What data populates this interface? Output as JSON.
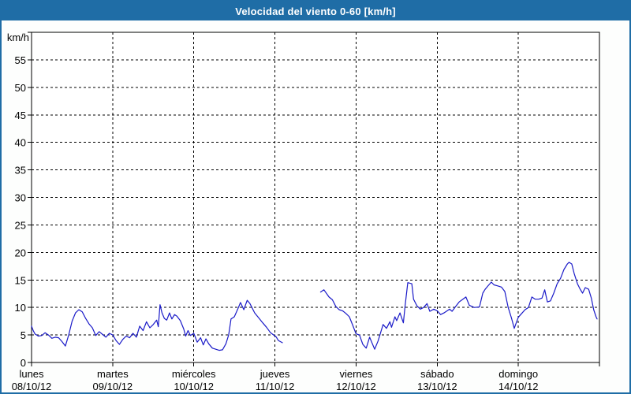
{
  "window": {
    "title": "Velocidad del viento 0-60 [km/h]"
  },
  "colors": {
    "frame": "#1f6da6",
    "title_text": "#ffffff",
    "background": "#fdfefd",
    "plot_background": "#ffffff",
    "grid": "#000000",
    "axis": "#000000",
    "text": "#000000",
    "line": "#1a1ac8"
  },
  "chart_data": {
    "type": "line",
    "title": "Velocidad del viento 0-60 [km/h]",
    "ylabel": "km/h",
    "xlabel": "",
    "ylim": [
      0,
      60
    ],
    "y_tick_step": 5,
    "y_tick_labels": [
      "0",
      "5",
      "10",
      "15",
      "20",
      "25",
      "30",
      "35",
      "40",
      "45",
      "50",
      "55"
    ],
    "grid": "dashed",
    "legend": "none",
    "x_total_hours": 168,
    "x_axis_days": [
      {
        "name": "lunes",
        "date": "08/10/12"
      },
      {
        "name": "martes",
        "date": "09/10/12"
      },
      {
        "name": "miércoles",
        "date": "10/10/12"
      },
      {
        "name": "jueves",
        "date": "11/10/12"
      },
      {
        "name": "viernes",
        "date": "12/10/12"
      },
      {
        "name": "sábado",
        "date": "13/10/12"
      },
      {
        "name": "domingo",
        "date": "14/10/12"
      }
    ],
    "series": [
      {
        "name": "Velocidad del viento",
        "unit": "km/h",
        "color": "#1a1ac8",
        "segments": [
          [
            [
              0,
              6.6
            ],
            [
              0.5,
              5.8
            ],
            [
              1,
              5.2
            ],
            [
              2,
              4.8
            ],
            [
              3,
              4.9
            ],
            [
              4,
              5.4
            ],
            [
              5,
              5.0
            ],
            [
              6,
              4.4
            ],
            [
              7,
              4.6
            ],
            [
              8,
              4.5
            ],
            [
              9,
              3.8
            ],
            [
              10,
              3.0
            ],
            [
              11,
              5.0
            ],
            [
              12,
              7.5
            ],
            [
              13,
              9.0
            ],
            [
              14,
              9.6
            ],
            [
              15,
              9.2
            ],
            [
              16,
              8.0
            ],
            [
              17,
              7.0
            ],
            [
              18,
              6.3
            ],
            [
              19,
              4.9
            ],
            [
              20,
              5.6
            ],
            [
              21,
              5.1
            ],
            [
              22,
              4.6
            ],
            [
              23,
              5.3
            ],
            [
              24,
              5.0
            ],
            [
              25,
              4.0
            ],
            [
              26,
              3.3
            ],
            [
              27,
              4.2
            ],
            [
              28,
              4.8
            ],
            [
              29,
              4.5
            ],
            [
              30,
              5.3
            ],
            [
              31,
              4.6
            ],
            [
              32,
              6.6
            ],
            [
              33,
              5.8
            ],
            [
              34,
              7.4
            ],
            [
              35,
              6.3
            ],
            [
              36,
              6.9
            ],
            [
              37,
              7.7
            ],
            [
              37.5,
              6.5
            ],
            [
              38,
              10.5
            ],
            [
              38.6,
              9.0
            ],
            [
              39.3,
              8.0
            ],
            [
              40,
              7.7
            ],
            [
              40.8,
              9.0
            ],
            [
              41.5,
              7.9
            ],
            [
              42.3,
              8.7
            ],
            [
              43,
              8.4
            ],
            [
              44,
              7.6
            ],
            [
              45,
              6.1
            ],
            [
              45.6,
              4.8
            ],
            [
              46.3,
              5.8
            ],
            [
              47,
              4.9
            ],
            [
              48,
              5.3
            ],
            [
              49,
              3.7
            ],
            [
              50,
              4.5
            ],
            [
              50.8,
              3.2
            ],
            [
              51.6,
              4.3
            ],
            [
              52.4,
              3.4
            ],
            [
              53.5,
              2.6
            ],
            [
              54.5,
              2.4
            ],
            [
              55.5,
              2.2
            ],
            [
              56.5,
              2.3
            ],
            [
              57.5,
              3.4
            ],
            [
              58.3,
              5.0
            ],
            [
              59,
              7.9
            ],
            [
              60,
              8.3
            ],
            [
              61,
              9.7
            ],
            [
              61.8,
              10.9
            ],
            [
              62.8,
              9.6
            ],
            [
              63.8,
              11.3
            ],
            [
              64.6,
              10.7
            ],
            [
              66,
              9.0
            ],
            [
              67.2,
              8.1
            ],
            [
              68.4,
              7.2
            ],
            [
              69.5,
              6.4
            ],
            [
              70.7,
              5.4
            ],
            [
              72.3,
              4.7
            ],
            [
              73,
              4.0
            ],
            [
              74.2,
              3.6
            ]
          ],
          [
            [
              85.5,
              12.8
            ],
            [
              86.5,
              13.2
            ],
            [
              88,
              11.9
            ],
            [
              89,
              11.4
            ],
            [
              90,
              10.2
            ],
            [
              91,
              9.6
            ],
            [
              92,
              9.4
            ],
            [
              93,
              8.9
            ],
            [
              94,
              8.3
            ],
            [
              95,
              6.8
            ],
            [
              96,
              5.2
            ],
            [
              97,
              5.0
            ],
            [
              98,
              3.3
            ],
            [
              99,
              2.6
            ],
            [
              100,
              4.6
            ],
            [
              101.5,
              2.4
            ],
            [
              102.5,
              3.9
            ],
            [
              104,
              6.9
            ],
            [
              105,
              6.2
            ],
            [
              106,
              7.4
            ],
            [
              106.5,
              6.4
            ],
            [
              107.5,
              8.3
            ],
            [
              108,
              7.6
            ],
            [
              109,
              9.0
            ],
            [
              110,
              7.2
            ],
            [
              110.5,
              10.3
            ],
            [
              111.3,
              14.5
            ],
            [
              112.5,
              14.3
            ],
            [
              113,
              11.5
            ],
            [
              114,
              10.3
            ],
            [
              115,
              9.7
            ],
            [
              116,
              10.0
            ],
            [
              117,
              10.7
            ],
            [
              117.8,
              9.3
            ],
            [
              119,
              9.7
            ],
            [
              120,
              9.4
            ],
            [
              121,
              8.7
            ],
            [
              122,
              9.0
            ],
            [
              123.7,
              9.7
            ],
            [
              124.4,
              9.3
            ],
            [
              125.6,
              10.3
            ],
            [
              126.5,
              11.0
            ],
            [
              128.5,
              11.9
            ],
            [
              129.5,
              10.4
            ],
            [
              131,
              10.0
            ],
            [
              132.5,
              10.1
            ],
            [
              133.5,
              12.6
            ],
            [
              134.2,
              13.3
            ],
            [
              135,
              13.9
            ],
            [
              136,
              14.6
            ],
            [
              136.8,
              14.1
            ],
            [
              138,
              13.9
            ],
            [
              139,
              13.7
            ],
            [
              140,
              12.9
            ],
            [
              141,
              10.0
            ],
            [
              142,
              8.0
            ],
            [
              142.8,
              6.2
            ],
            [
              143.5,
              7.4
            ],
            [
              144,
              8.2
            ],
            [
              145,
              8.9
            ],
            [
              146,
              9.6
            ],
            [
              147,
              10.0
            ],
            [
              148,
              11.9
            ],
            [
              149,
              11.5
            ],
            [
              150,
              11.5
            ],
            [
              151,
              11.7
            ],
            [
              151.8,
              13.2
            ],
            [
              152.6,
              11.0
            ],
            [
              153.5,
              11.2
            ],
            [
              154.5,
              12.6
            ],
            [
              155.5,
              14.3
            ],
            [
              156.5,
              15.3
            ],
            [
              157.5,
              16.9
            ],
            [
              158.5,
              17.9
            ],
            [
              159,
              18.2
            ],
            [
              159.8,
              17.9
            ],
            [
              160.5,
              16.2
            ],
            [
              161.5,
              14.3
            ],
            [
              162.3,
              13.3
            ],
            [
              163,
              12.6
            ],
            [
              163.8,
              13.6
            ],
            [
              164.8,
              13.3
            ],
            [
              165.6,
              11.7
            ],
            [
              166.3,
              9.6
            ],
            [
              167,
              8.3
            ],
            [
              167.3,
              7.9
            ]
          ]
        ]
      }
    ]
  }
}
